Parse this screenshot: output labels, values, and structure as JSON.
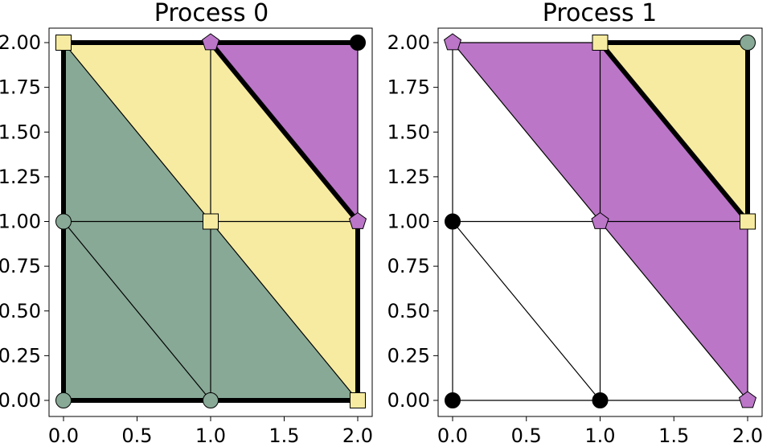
{
  "colors": {
    "green": "#87a996",
    "yellow": "#f6eba1",
    "purple": "#bb76c8",
    "black": "#000000",
    "white": "#ffffff"
  },
  "axes": {
    "xlim": [
      -0.1,
      2.1
    ],
    "ylim": [
      -0.1,
      2.1
    ],
    "x_ticks": [
      "0.0",
      "0.5",
      "1.0",
      "1.5",
      "2.0"
    ],
    "x_tick_values": [
      0,
      0.5,
      1,
      1.5,
      2
    ],
    "y_ticks": [
      "0.00",
      "0.25",
      "0.50",
      "0.75",
      "1.00",
      "1.25",
      "1.50",
      "1.75",
      "2.00"
    ],
    "y_tick_values": [
      0,
      0.25,
      0.5,
      0.75,
      1,
      1.25,
      1.5,
      1.75,
      2
    ]
  },
  "mesh": {
    "vertices": [
      [
        0,
        0
      ],
      [
        1,
        0
      ],
      [
        2,
        0
      ],
      [
        0,
        1
      ],
      [
        1,
        1
      ],
      [
        2,
        1
      ],
      [
        0,
        2
      ],
      [
        1,
        2
      ],
      [
        2,
        2
      ]
    ],
    "edges": [
      [
        0,
        1
      ],
      [
        1,
        2
      ],
      [
        3,
        4
      ],
      [
        4,
        5
      ],
      [
        6,
        7
      ],
      [
        7,
        8
      ],
      [
        0,
        3
      ],
      [
        3,
        6
      ],
      [
        1,
        4
      ],
      [
        4,
        7
      ],
      [
        2,
        5
      ],
      [
        5,
        8
      ],
      [
        3,
        1
      ],
      [
        6,
        4
      ],
      [
        4,
        2
      ],
      [
        7,
        5
      ]
    ]
  },
  "panels": [
    {
      "title": "Process 0",
      "cells": [
        {
          "verts": [
            0,
            1,
            3
          ],
          "color": "green"
        },
        {
          "verts": [
            1,
            4,
            3
          ],
          "color": "green"
        },
        {
          "verts": [
            1,
            2,
            4
          ],
          "color": "green"
        },
        {
          "verts": [
            3,
            4,
            6
          ],
          "color": "green"
        },
        {
          "verts": [
            2,
            5,
            4
          ],
          "color": "yellow"
        },
        {
          "verts": [
            4,
            7,
            6
          ],
          "color": "yellow"
        },
        {
          "verts": [
            4,
            5,
            7
          ],
          "color": "yellow"
        },
        {
          "verts": [
            5,
            8,
            7
          ],
          "color": "purple"
        }
      ],
      "thick_edges": [
        [
          0,
          1
        ],
        [
          1,
          2
        ],
        [
          0,
          3
        ],
        [
          3,
          6
        ],
        [
          6,
          7
        ],
        [
          7,
          8
        ],
        [
          2,
          5
        ],
        [
          7,
          5
        ]
      ],
      "markers": [
        {
          "v": 0,
          "shape": "circle",
          "color": "green"
        },
        {
          "v": 1,
          "shape": "circle",
          "color": "green"
        },
        {
          "v": 2,
          "shape": "square",
          "color": "yellow"
        },
        {
          "v": 3,
          "shape": "circle",
          "color": "green"
        },
        {
          "v": 4,
          "shape": "square",
          "color": "yellow"
        },
        {
          "v": 5,
          "shape": "pentagon",
          "color": "purple"
        },
        {
          "v": 6,
          "shape": "square",
          "color": "yellow"
        },
        {
          "v": 7,
          "shape": "pentagon",
          "color": "purple"
        },
        {
          "v": 8,
          "shape": "circle",
          "color": "black"
        }
      ]
    },
    {
      "title": "Process 1",
      "cells": [
        {
          "verts": [
            0,
            1,
            3
          ],
          "color": "white"
        },
        {
          "verts": [
            1,
            4,
            3
          ],
          "color": "white"
        },
        {
          "verts": [
            3,
            4,
            6
          ],
          "color": "white"
        },
        {
          "verts": [
            1,
            2,
            4
          ],
          "color": "white"
        },
        {
          "verts": [
            2,
            5,
            4
          ],
          "color": "purple"
        },
        {
          "verts": [
            4,
            7,
            6
          ],
          "color": "purple"
        },
        {
          "verts": [
            4,
            5,
            7
          ],
          "color": "purple"
        },
        {
          "verts": [
            5,
            8,
            7
          ],
          "color": "yellow"
        }
      ],
      "thick_edges": [
        [
          7,
          5
        ],
        [
          5,
          8
        ],
        [
          7,
          8
        ]
      ],
      "markers": [
        {
          "v": 0,
          "shape": "circle",
          "color": "black"
        },
        {
          "v": 1,
          "shape": "circle",
          "color": "black"
        },
        {
          "v": 2,
          "shape": "pentagon",
          "color": "purple"
        },
        {
          "v": 3,
          "shape": "circle",
          "color": "black"
        },
        {
          "v": 4,
          "shape": "pentagon",
          "color": "purple"
        },
        {
          "v": 5,
          "shape": "square",
          "color": "yellow"
        },
        {
          "v": 6,
          "shape": "pentagon",
          "color": "purple"
        },
        {
          "v": 7,
          "shape": "square",
          "color": "yellow"
        },
        {
          "v": 8,
          "shape": "circle",
          "color": "green"
        }
      ]
    }
  ]
}
